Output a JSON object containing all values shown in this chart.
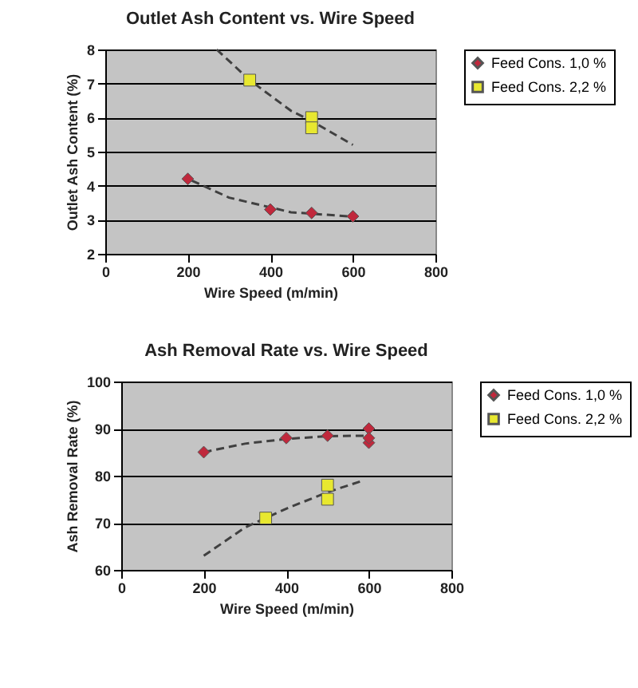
{
  "chart_data": [
    {
      "type": "scatter",
      "title": "Outlet Ash Content vs. Wire Speed",
      "xlabel": "Wire Speed (m/min)",
      "ylabel": "Outlet Ash Content (%)",
      "xlim": [
        0,
        800
      ],
      "xticks": [
        0,
        200,
        400,
        600,
        800
      ],
      "ylim": [
        2,
        8
      ],
      "yticks": [
        2,
        3,
        4,
        5,
        6,
        7,
        8
      ],
      "grid": "y",
      "legend": "right",
      "series": [
        {
          "name": "Feed Cons. 1,0 %",
          "color": "#c0283c",
          "marker": "diamond",
          "x": [
            200,
            400,
            500,
            600
          ],
          "values": [
            4.2,
            3.3,
            3.2,
            3.1
          ]
        },
        {
          "name": "Feed Cons. 2,2 %",
          "color": "#e8e830",
          "marker": "square",
          "x": [
            350,
            500,
            500
          ],
          "values": [
            7.1,
            6.0,
            5.7
          ]
        },
        {
          "type": "line",
          "color": "#404040",
          "line_style": "dashed",
          "marker": "none",
          "x": [
            270,
            350,
            450,
            500,
            600
          ],
          "values": [
            8,
            7.1,
            6.2,
            5.9,
            5.2
          ]
        },
        {
          "type": "line",
          "color": "#404040",
          "line_style": "dashed",
          "marker": "none",
          "x": [
            210,
            300,
            450,
            590
          ],
          "values": [
            4.15,
            3.65,
            3.22,
            3.1
          ]
        }
      ]
    },
    {
      "type": "scatter",
      "title": "Ash Removal Rate vs. Wire Speed",
      "xlabel": "Wire Speed (m/min)",
      "ylabel": "Ash Removal Rate (%)",
      "xlim": [
        0,
        800
      ],
      "xticks": [
        0,
        200,
        400,
        600,
        800
      ],
      "ylim": [
        60,
        100
      ],
      "yticks": [
        60,
        70,
        80,
        90,
        100
      ],
      "grid": "y",
      "legend": "right",
      "series": [
        {
          "name": "Feed Cons. 1,0 %",
          "color": "#c0283c",
          "marker": "diamond",
          "x": [
            200,
            400,
            500,
            600,
            600,
            600
          ],
          "values": [
            85,
            88,
            88.5,
            90,
            87,
            88
          ]
        },
        {
          "name": "Feed Cons. 2,2 %",
          "color": "#e8e830",
          "marker": "square",
          "x": [
            350,
            500,
            500
          ],
          "values": [
            71,
            78,
            75
          ]
        },
        {
          "type": "line",
          "color": "#404040",
          "line_style": "dashed",
          "marker": "none",
          "x": [
            200,
            300,
            400,
            500,
            600
          ],
          "values": [
            85,
            86.8,
            87.8,
            88.4,
            88.5
          ]
        },
        {
          "type": "line",
          "color": "#404040",
          "line_style": "dashed",
          "marker": "none",
          "x": [
            200,
            300,
            400,
            500,
            580
          ],
          "values": [
            63,
            69,
            73,
            76.5,
            78.8
          ]
        }
      ]
    }
  ]
}
